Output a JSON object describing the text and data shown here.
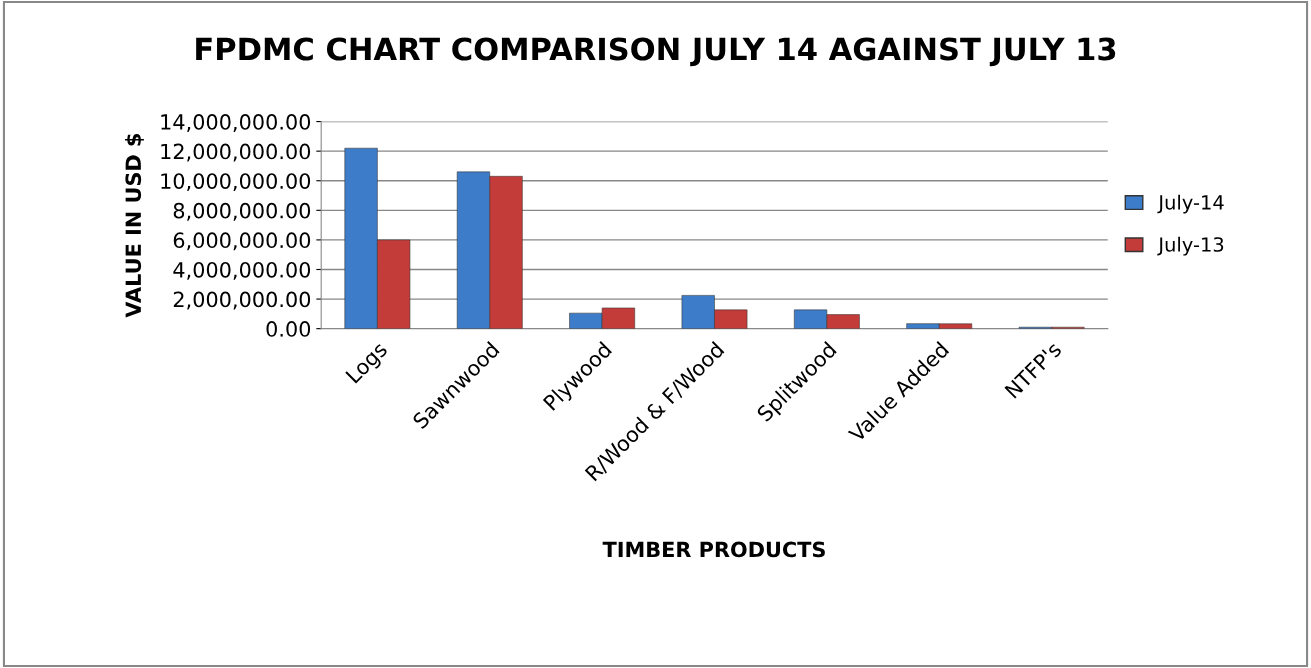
{
  "chart_data": {
    "type": "bar",
    "title": "FPDMC CHART COMPARISON JULY 14 AGAINST JULY 13",
    "xlabel": "TIMBER PRODUCTS",
    "ylabel": "VALUE IN USD $",
    "categories": [
      "Logs",
      "Sawnwood",
      "Plywood",
      "R/Wood & F/Wood",
      "Splitwood",
      "Value Added",
      "NTFP's"
    ],
    "series": [
      {
        "name": "July-14",
        "color": "#3d7cc9",
        "values": [
          12200000,
          10600000,
          1050000,
          2250000,
          1270000,
          340000,
          100000
        ]
      },
      {
        "name": "July-13",
        "color": "#c43c3a",
        "values": [
          6000000,
          10300000,
          1400000,
          1270000,
          950000,
          330000,
          100000
        ]
      }
    ],
    "ylim": [
      0,
      14000000
    ],
    "yticks": [
      {
        "value": 0,
        "label": "0.00"
      },
      {
        "value": 2000000,
        "label": "2,000,000.00"
      },
      {
        "value": 4000000,
        "label": "4,000,000.00"
      },
      {
        "value": 6000000,
        "label": "6,000,000.00"
      },
      {
        "value": 8000000,
        "label": "8,000,000.00"
      },
      {
        "value": 10000000,
        "label": "10,000,000.00"
      },
      {
        "value": 12000000,
        "label": "12,000,000.00"
      },
      {
        "value": 14000000,
        "label": "14,000,000.00"
      }
    ],
    "grid": "y",
    "legend": "right"
  }
}
